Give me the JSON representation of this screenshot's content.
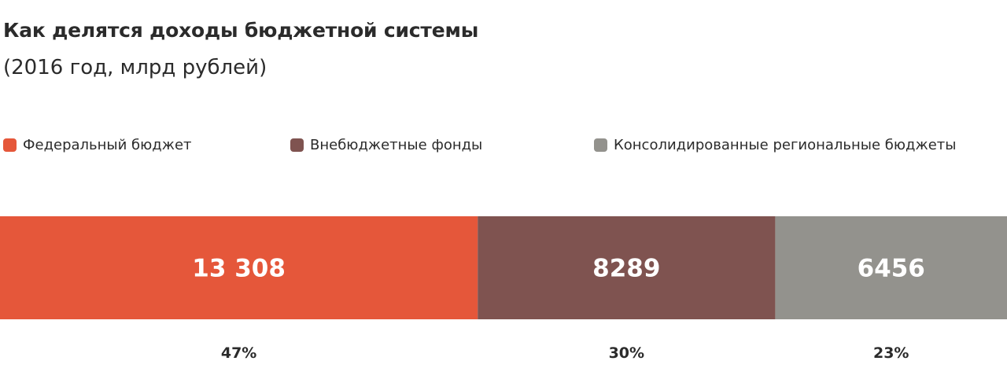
{
  "chart_data": {
    "type": "bar",
    "orientation": "horizontal-stacked",
    "title": "Как делятся доходы бюджетной системы",
    "subtitle": "(2016 год, млрд рублей)",
    "legend_position": "top",
    "grid": false,
    "series": [
      {
        "name": "Федеральный бюджет",
        "value": 13308,
        "value_label": "13 308",
        "percent_label": "47%",
        "color": "#e5573a"
      },
      {
        "name": "Внебюджетные фонды",
        "value": 8289,
        "value_label": "8289",
        "percent_label": "30%",
        "color": "#7f5350"
      },
      {
        "name": "Консолидированные региональные бюджеты",
        "value": 6456,
        "value_label": "6456",
        "percent_label": "23%",
        "color": "#93928d"
      }
    ]
  }
}
